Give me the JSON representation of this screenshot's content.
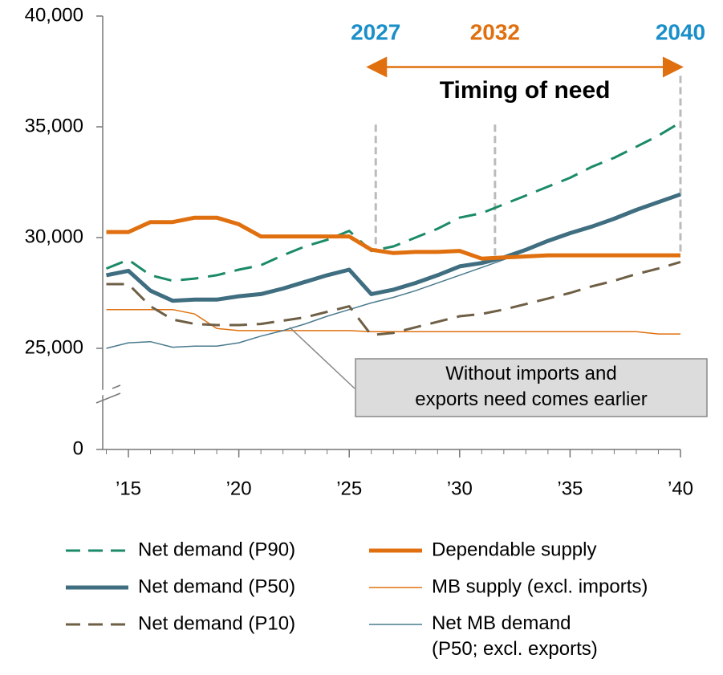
{
  "chart_data": {
    "type": "line",
    "x": [
      2014,
      2015,
      2016,
      2017,
      2018,
      2019,
      2020,
      2021,
      2022,
      2023,
      2024,
      2025,
      2026,
      2027,
      2028,
      2029,
      2030,
      2031,
      2032,
      2033,
      2034,
      2035,
      2036,
      2037,
      2038,
      2039,
      2040
    ],
    "series": [
      {
        "name": "Net demand (P90)",
        "color": "#1b8a68",
        "dash": true,
        "width": 3,
        "values": [
          28600,
          29000,
          28300,
          28050,
          28150,
          28300,
          28550,
          28750,
          29200,
          29600,
          29900,
          30300,
          29400,
          29600,
          30000,
          30400,
          30900,
          31100,
          31500,
          31900,
          32300,
          32700,
          33200,
          33600,
          34100,
          34600,
          35200
        ]
      },
      {
        "name": "Net demand (P50)",
        "color": "#3f6e80",
        "dash": false,
        "width": 5,
        "values": [
          28300,
          28500,
          27600,
          27150,
          27200,
          27200,
          27350,
          27450,
          27700,
          28000,
          28300,
          28550,
          27450,
          27650,
          27950,
          28300,
          28700,
          28850,
          29100,
          29450,
          29850,
          30200,
          30500,
          30850,
          31250,
          31600,
          31950
        ]
      },
      {
        "name": "Net demand (P10)",
        "color": "#6e5f45",
        "dash": true,
        "width": 3,
        "values": [
          27900,
          27900,
          26900,
          26300,
          26100,
          26050,
          26050,
          26100,
          26250,
          26400,
          26650,
          26900,
          25600,
          25700,
          25950,
          26200,
          26450,
          26550,
          26750,
          27000,
          27250,
          27500,
          27800,
          28050,
          28350,
          28600,
          28900
        ]
      },
      {
        "name": "Dependable supply",
        "color": "#e0700f",
        "dash": false,
        "width": 5,
        "values": [
          30250,
          30250,
          30700,
          30700,
          30900,
          30900,
          30600,
          30050,
          30050,
          30050,
          30050,
          30050,
          29450,
          29300,
          29350,
          29350,
          29400,
          29050,
          29100,
          29150,
          29200,
          29200,
          29200,
          29200,
          29200,
          29200,
          29200
        ]
      },
      {
        "name": "MB supply (excl. imports)",
        "color": "#e0700f",
        "dash": false,
        "width": 1.5,
        "values": [
          26750,
          26750,
          26750,
          26750,
          26550,
          25900,
          25800,
          25800,
          25800,
          25800,
          25800,
          25800,
          25750,
          25750,
          25750,
          25750,
          25750,
          25750,
          25750,
          25750,
          25750,
          25750,
          25750,
          25750,
          25750,
          25650,
          25650
        ]
      },
      {
        "name": "Net MB demand\n(P50; excl. exports)",
        "color": "#4a7a8e",
        "dash": false,
        "width": 1.5,
        "values": [
          25000,
          25250,
          25300,
          25050,
          25100,
          25100,
          25250,
          25550,
          25800,
          26100,
          26450,
          26750,
          27050,
          27300,
          27600,
          27950,
          28300,
          28650,
          29000,
          29400,
          29850,
          30200,
          30550,
          30900,
          31250,
          31600,
          31950
        ]
      }
    ],
    "xlim": [
      2014,
      2040
    ],
    "xticks": [
      {
        "value": 2015,
        "label": "’15"
      },
      {
        "value": 2020,
        "label": "’20"
      },
      {
        "value": 2025,
        "label": "’25"
      },
      {
        "value": 2030,
        "label": "’30"
      },
      {
        "value": 2035,
        "label": "’35"
      },
      {
        "value": 2040,
        "label": "’40"
      }
    ],
    "ylim": [
      0,
      40000
    ],
    "yticks": [
      {
        "value": 0,
        "label": "0"
      },
      {
        "value": 25000,
        "label": "25,000"
      },
      {
        "value": 30000,
        "label": "30,000"
      },
      {
        "value": 35000,
        "label": "35,000"
      },
      {
        "value": 40000,
        "label": "40,000"
      }
    ],
    "axis_break": true,
    "markers": [
      {
        "label": "2027",
        "color": "#1a8fc9",
        "x": 2026.2,
        "top": 35100,
        "bottom": 29400
      },
      {
        "label": "2032",
        "color": "#e0700f",
        "x": 2031.6,
        "top": 35100,
        "bottom": 29100
      },
      {
        "label": "2040",
        "color": "#1a8fc9",
        "x": 2040,
        "top": 37300,
        "bottom": 29200
      }
    ],
    "arrow": {
      "label": "Timing of need",
      "color": "#e0700f",
      "y": 37700
    },
    "callout": {
      "text": "Without imports and\nexports need comes earlier",
      "point": [
        2022.3,
        25950
      ]
    }
  }
}
